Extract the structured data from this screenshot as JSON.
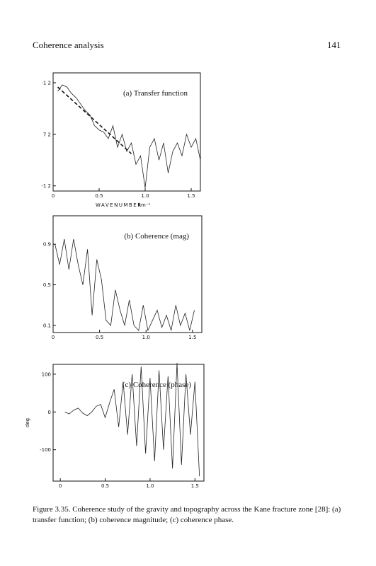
{
  "header": {
    "title": "Coherence analysis",
    "page": "141"
  },
  "caption": "Figure 3.35. Coherence study of the gravity and topography across the Kane fracture zone [28]: (a) transfer function; (b) coherence magnitude; (c) coherence phase.",
  "chart_data": [
    {
      "type": "line",
      "annotation": "(a) Transfer function",
      "xlabel": "WAVENUMBER",
      "xunit": "km⁻¹",
      "xlim": [
        0,
        1.6
      ],
      "ylim": [
        -1.32,
        1.43
      ],
      "xticks": [
        0,
        0.5,
        {
          "value": 1,
          "label": "1.0"
        },
        1.5
      ],
      "yticks": [
        {
          "value": 1.2,
          "label": "·1 2"
        },
        {
          "value": 0,
          "label": "7 2"
        },
        {
          "value": -1.2,
          "label": "-1 2"
        }
      ],
      "series": [
        {
          "color": "#222",
          "dashed": false,
          "x": [
            0.05,
            0.1,
            0.15,
            0.2,
            0.25,
            0.3,
            0.35,
            0.4,
            0.45,
            0.5,
            0.55,
            0.6,
            0.65,
            0.7,
            0.75,
            0.8,
            0.85,
            0.9,
            0.95,
            1.0,
            1.05,
            1.1,
            1.15,
            1.2,
            1.25,
            1.3,
            1.35,
            1.4,
            1.45,
            1.5,
            1.55,
            1.6
          ],
          "values": [
            1.0,
            1.15,
            1.1,
            0.95,
            0.85,
            0.7,
            0.55,
            0.45,
            0.2,
            0.1,
            0.05,
            -0.1,
            0.2,
            -0.3,
            0.0,
            -0.4,
            -0.2,
            -0.7,
            -0.5,
            -1.25,
            -0.3,
            -0.1,
            -0.6,
            -0.2,
            -0.9,
            -0.4,
            -0.2,
            -0.5,
            0.0,
            -0.3,
            -0.1,
            -0.6
          ]
        },
        {
          "color": "#111",
          "dashed": true,
          "x": [
            0.05,
            0.85
          ],
          "values": [
            1.1,
            -0.45
          ]
        }
      ]
    },
    {
      "type": "line",
      "annotation": "(b) Coherence (mag)",
      "xlim": [
        0,
        1.6
      ],
      "ylim": [
        0.03,
        1.18
      ],
      "xticks": [
        0,
        0.5,
        {
          "value": 1,
          "label": "1.0"
        },
        1.5
      ],
      "yticks": [
        0.9,
        0.5,
        0.1
      ],
      "series": [
        {
          "color": "#222",
          "dashed": false,
          "x": [
            0.02,
            0.07,
            0.12,
            0.17,
            0.22,
            0.27,
            0.32,
            0.37,
            0.42,
            0.47,
            0.52,
            0.57,
            0.62,
            0.67,
            0.72,
            0.77,
            0.82,
            0.87,
            0.92,
            0.97,
            1.02,
            1.07,
            1.12,
            1.17,
            1.22,
            1.27,
            1.32,
            1.37,
            1.42,
            1.47,
            1.52
          ],
          "values": [
            0.9,
            0.7,
            0.95,
            0.65,
            0.95,
            0.7,
            0.5,
            0.85,
            0.2,
            0.75,
            0.55,
            0.15,
            0.1,
            0.45,
            0.25,
            0.1,
            0.35,
            0.1,
            0.05,
            0.3,
            0.05,
            0.15,
            0.25,
            0.08,
            0.2,
            0.05,
            0.3,
            0.1,
            0.22,
            0.05,
            0.25
          ]
        }
      ]
    },
    {
      "type": "line",
      "annotation": "(c) Coherence (phase)",
      "ylabel": "deg",
      "xlim": [
        -0.08,
        1.6
      ],
      "ylim": [
        -183,
        126
      ],
      "xticks": [
        0,
        0.5,
        {
          "value": 1,
          "label": "1.0"
        },
        1.5
      ],
      "yticks": [
        100,
        0,
        -100
      ],
      "series": [
        {
          "color": "#222",
          "dashed": false,
          "x": [
            0.05,
            0.1,
            0.15,
            0.2,
            0.25,
            0.3,
            0.35,
            0.4,
            0.45,
            0.5,
            0.55,
            0.6,
            0.65,
            0.7,
            0.75,
            0.8,
            0.85,
            0.9,
            0.95,
            1.0,
            1.05,
            1.1,
            1.15,
            1.2,
            1.25,
            1.3,
            1.35,
            1.4,
            1.45,
            1.5,
            1.55
          ],
          "values": [
            0,
            -5,
            5,
            10,
            -3,
            -10,
            0,
            15,
            20,
            -15,
            25,
            60,
            -40,
            80,
            -60,
            100,
            -90,
            120,
            -110,
            90,
            -130,
            110,
            -100,
            95,
            -150,
            130,
            -140,
            100,
            -60,
            80,
            -170
          ]
        }
      ]
    }
  ]
}
